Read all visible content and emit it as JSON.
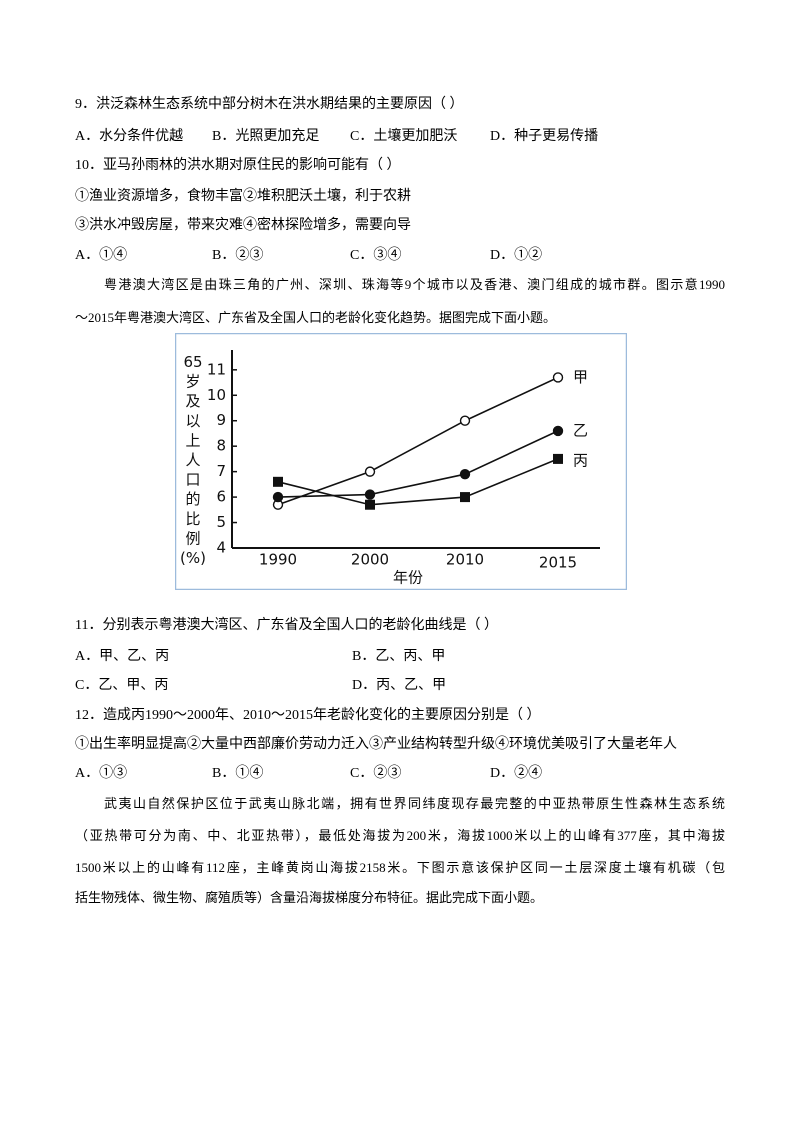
{
  "q9": {
    "stem": "9．洪泛森林生态系统中部分树木在洪水期结果的主要原因（ ）",
    "options": [
      "A．水分条件优越",
      "B．光照更加充足",
      "C．土壤更加肥沃",
      "D．种子更易传播"
    ]
  },
  "q10": {
    "stem": "10．亚马孙雨林的洪水期对原住民的影响可能有（ ）",
    "statements": [
      "①渔业资源增多，食物丰富②堆积肥沃土壤，利于农耕",
      "③洪水冲毁房屋，带来灾难④密林探险增多，需要向导"
    ],
    "options": [
      "A．①④",
      "B．②③",
      "C．③④",
      "D．①②"
    ]
  },
  "passage1": [
    "粤港澳大湾区是由珠三角的广州、深圳、珠海等9个城市以及香港、澳门组成的城市群。图示意1990",
    "～2015年粤港澳大湾区、广东省及全国人口的老龄化变化趋势。据图完成下面小题。"
  ],
  "figure": {
    "type": "line",
    "y_label": "65岁及以上人口的比例(%)",
    "x_label": "年份",
    "categories": [
      "1990",
      "2000",
      "2010",
      "2015"
    ],
    "ylim": [
      4,
      11.7
    ],
    "yticks": [
      4,
      5,
      6,
      7,
      8,
      9,
      10,
      11
    ],
    "series": [
      {
        "name": "甲",
        "color": "#111111",
        "marker": "open-circle",
        "values": [
          5.7,
          7.0,
          9.0,
          10.7
        ]
      },
      {
        "name": "乙",
        "color": "#111111",
        "marker": "filled-circle",
        "values": [
          6.0,
          6.1,
          6.9,
          8.6
        ]
      },
      {
        "name": "丙",
        "color": "#111111",
        "marker": "square",
        "values": [
          6.6,
          5.7,
          6.0,
          7.5
        ]
      }
    ]
  },
  "q11": {
    "stem": "11．分别表示粤港澳大湾区、广东省及全国人口的老龄化曲线是（ ）",
    "options": [
      "A．甲、乙、丙",
      "B．乙、丙、甲",
      "C．乙、甲、丙",
      "D．丙、乙、甲"
    ]
  },
  "q12": {
    "stem": "12．造成丙1990～2000年、2010～2015年老龄化变化的主要原因分别是（ ）",
    "statements": [
      "①出生率明显提高②大量中西部廉价劳动力迁入③产业结构转型升级④环境优美吸引了大量老年人"
    ],
    "options": [
      "A．①③",
      "B．①④",
      "C．②③",
      "D．②④"
    ]
  },
  "passage2": [
    "武夷山自然保护区位于武夷山脉北端，拥有世界同纬度现存最完整的中亚热带原生性森林生态系统",
    "（亚热带可分为南、中、北亚热带），最低处海拔为200米，海拔1000米以上的山峰有377座，其中海拔",
    "1500米以上的山峰有112座，主峰黄岗山海拔2158米。下图示意该保护区同一土层深度土壤有机碳（包",
    "括生物残体、微生物、腐殖质等）含量沿海拔梯度分布特征。据此完成下面小题。"
  ]
}
